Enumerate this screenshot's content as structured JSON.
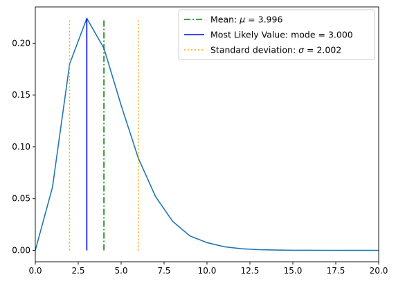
{
  "chart_data": {
    "type": "line",
    "title": "",
    "xlabel": "",
    "ylabel": "",
    "xlim": [
      0,
      20
    ],
    "ylim": [
      -0.011,
      0.235
    ],
    "xticks": [
      "0.0",
      "2.5",
      "5.0",
      "7.5",
      "10.0",
      "12.5",
      "15.0",
      "17.5",
      "20.0"
    ],
    "xtick_values": [
      0,
      2.5,
      5,
      7.5,
      10,
      12.5,
      15,
      17.5,
      20
    ],
    "yticks": [
      "0.00",
      "0.05",
      "0.10",
      "0.15",
      "0.20"
    ],
    "ytick_values": [
      0,
      0.05,
      0.1,
      0.15,
      0.2
    ],
    "grid": false,
    "legend_position": "top-right",
    "series": [
      {
        "name": "",
        "color": "#1f77b4",
        "x": [
          0,
          1,
          2,
          3,
          4,
          5,
          6,
          7,
          8,
          9,
          10,
          11,
          12,
          13,
          14,
          15,
          16,
          17,
          18,
          19,
          20
        ],
        "y": [
          0.0,
          0.061,
          0.18,
          0.224,
          0.195,
          0.14,
          0.089,
          0.052,
          0.028,
          0.014,
          0.0075,
          0.0035,
          0.0016,
          0.0007,
          0.0003,
          0.0001,
          5e-05,
          2e-05,
          1e-05,
          0.0,
          0.0
        ]
      }
    ],
    "vlines": [
      {
        "name": "Mean: μ = 3.996",
        "label_prefix": "Mean: ",
        "symbol": "μ",
        "label_suffix": " = 3.996",
        "x": 3.996,
        "ymin": 0,
        "ymax": 0.224,
        "color": "#008000",
        "style": "dashdot"
      },
      {
        "name": "Most Likely Value: mode = 3.000",
        "label_prefix": "Most Likely Value: mode = 3.000",
        "symbol": "",
        "label_suffix": "",
        "x": 3.0,
        "ymin": 0,
        "ymax": 0.224,
        "color": "#0000ff",
        "style": "solid"
      },
      {
        "name": "Standard deviation: σ = 2.002",
        "label_prefix": "Standard deviation: ",
        "symbol": "σ",
        "label_suffix": " = 2.002",
        "x": 1.994,
        "ymin": 0,
        "ymax": 0.224,
        "color": "#ffa500",
        "style": "dotted"
      },
      {
        "name": "",
        "x": 5.998,
        "ymin": 0,
        "ymax": 0.224,
        "color": "#ffa500",
        "style": "dotted"
      }
    ]
  }
}
